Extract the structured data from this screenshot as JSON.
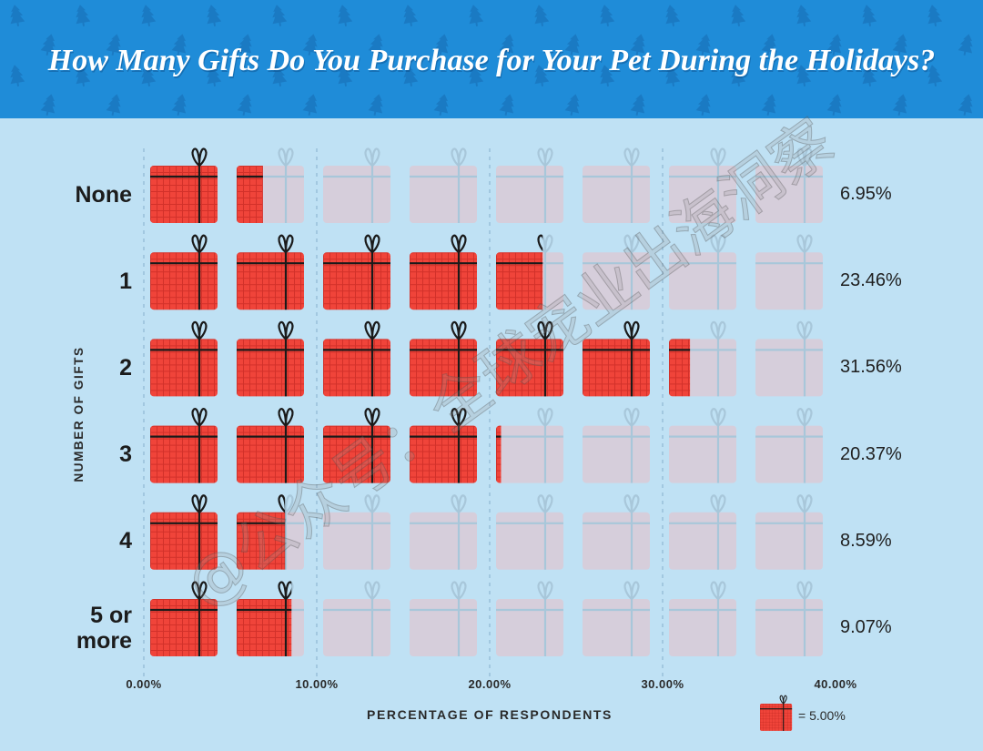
{
  "colors": {
    "header_bg": "#1f8cd8",
    "header_trees": "#1a7ac3",
    "background": "#bfe1f4",
    "gift_fill": "#f0443a",
    "gift_empty": "#d6cedb",
    "ribbon": "#1a1a1a",
    "ribbon_empty": "#a8c7da",
    "grid": "#8fb7d2"
  },
  "chart_data": {
    "type": "bar",
    "orientation": "horizontal",
    "style": "pictogram",
    "icon": "gift-icon",
    "title": "How Many Gifts Do You Purchase for Your Pet During the Holidays?",
    "categories": [
      "None",
      "1",
      "2",
      "3",
      "4",
      "5 or more"
    ],
    "values": [
      6.95,
      23.46,
      31.56,
      20.37,
      8.59,
      9.07
    ],
    "value_labels": [
      "6.95%",
      "23.46%",
      "31.56%",
      "20.37%",
      "8.59%",
      "9.07%"
    ],
    "xlabel": "PERCENTAGE OF RESPONDENTS",
    "ylabel": "NUMBER OF GIFTS",
    "xlim": [
      0,
      40
    ],
    "x_ticks": [
      0,
      10,
      20,
      30,
      40
    ],
    "x_tick_labels": [
      "0.00%",
      "10.00%",
      "20.00%",
      "30.00%",
      "40.00%"
    ],
    "icon_value": 5,
    "grid": true,
    "legend": {
      "label": "= 5.00%",
      "placement": "bottom-right"
    }
  },
  "watermark": "@公众号：全球宠业出海洞察"
}
